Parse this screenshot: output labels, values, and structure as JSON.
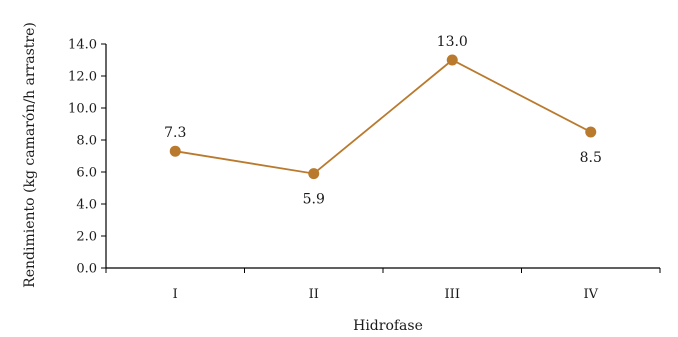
{
  "chart_data": {
    "type": "line",
    "categories": [
      "I",
      "II",
      "III",
      "IV"
    ],
    "series": [
      {
        "values": [
          7.3,
          5.9,
          13.0,
          8.5
        ],
        "data_labels": [
          "7.3",
          "5.9",
          "13.0",
          "8.5"
        ],
        "label_positions": [
          "above",
          "below",
          "above",
          "below"
        ],
        "color": "#B97A2E"
      }
    ],
    "xlabel": "Hidrofase",
    "ylabel": "Rendimiento (kg camarón/h arrastre)",
    "ylim": [
      0,
      14
    ],
    "yticks": [
      "0.0",
      "2.0",
      "4.0",
      "6.0",
      "8.0",
      "10.0",
      "12.0",
      "14.0"
    ],
    "grid": false,
    "legend": "none"
  }
}
